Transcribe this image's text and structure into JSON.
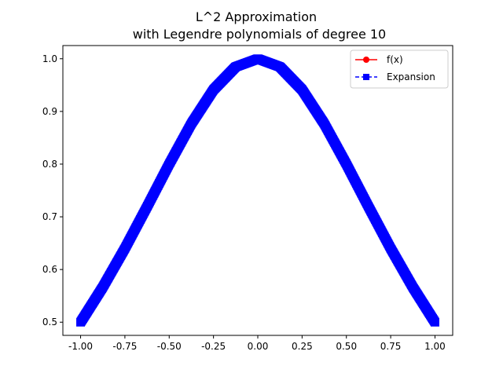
{
  "chart_data": {
    "type": "line",
    "title": [
      "L^2 Approximation",
      "with Legendre polynomials of degree 10"
    ],
    "xlabel": "",
    "ylabel": "",
    "xlim": [
      -1.1,
      1.1
    ],
    "ylim": [
      0.475,
      1.025
    ],
    "xticks": [
      "-1.00",
      "-0.75",
      "-0.50",
      "-0.25",
      "0.00",
      "0.25",
      "0.50",
      "0.75",
      "1.00"
    ],
    "yticks": [
      "0.5",
      "0.6",
      "0.7",
      "0.8",
      "0.9",
      "1.0"
    ],
    "legend_position": "top-right",
    "series": [
      {
        "name": "f(x)",
        "color": "#ff0000",
        "marker": "circle",
        "linestyle": "solid",
        "x": [
          -1.0,
          -0.875,
          -0.75,
          -0.625,
          -0.5,
          -0.375,
          -0.25,
          -0.125,
          0.0,
          0.125,
          0.25,
          0.375,
          0.5,
          0.625,
          0.75,
          0.875,
          1.0
        ],
        "y": [
          0.5,
          0.5664,
          0.64,
          0.7191,
          0.8,
          0.8767,
          0.9412,
          0.9846,
          1.0,
          0.9846,
          0.9412,
          0.8767,
          0.8,
          0.7191,
          0.64,
          0.5664,
          0.5
        ]
      },
      {
        "name": "Expansion",
        "color": "#0000ff",
        "marker": "square",
        "linestyle": "dashed",
        "x": [
          -1.0,
          -0.875,
          -0.75,
          -0.625,
          -0.5,
          -0.375,
          -0.25,
          -0.125,
          0.0,
          0.125,
          0.25,
          0.375,
          0.5,
          0.625,
          0.75,
          0.875,
          1.0
        ],
        "y": [
          0.5,
          0.5664,
          0.64,
          0.7191,
          0.8,
          0.8767,
          0.9412,
          0.9846,
          1.0,
          0.9846,
          0.9412,
          0.8767,
          0.8,
          0.7191,
          0.64,
          0.5664,
          0.5
        ]
      }
    ]
  }
}
